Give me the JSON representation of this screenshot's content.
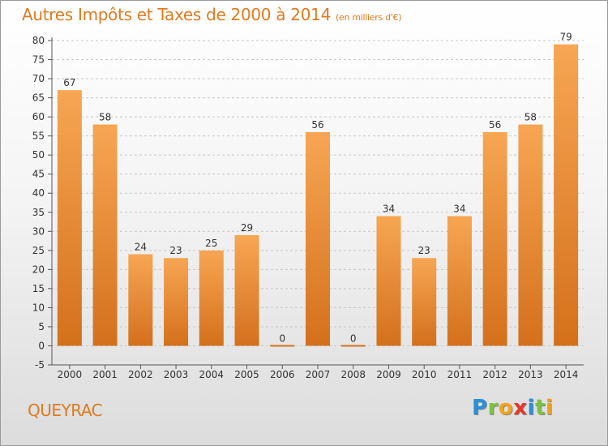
{
  "title": "Autres Impôts et Taxes de 2000 à 2014",
  "title_unit": "(en milliers d'€)",
  "place": "QUEYRAC",
  "logo": {
    "letters": [
      "P",
      "r",
      "o",
      "x",
      "i",
      "t",
      "i"
    ],
    "colors": [
      "#2a8fd8",
      "#7cc242",
      "#f2a31a",
      "#e8372a",
      "#2a8fd8",
      "#7cc242",
      "#f2a31a"
    ]
  },
  "colors": {
    "bar_light": "#f7a653",
    "bar_dark": "#d4701c",
    "accent": "#e07a1f",
    "grid": "#c8c8c8"
  },
  "chart_data": {
    "type": "bar",
    "categories": [
      "2000",
      "2001",
      "2002",
      "2003",
      "2004",
      "2005",
      "2006",
      "2007",
      "2008",
      "2009",
      "2010",
      "2011",
      "2012",
      "2013",
      "2014"
    ],
    "values": [
      67,
      58,
      24,
      23,
      25,
      29,
      0,
      56,
      0,
      34,
      23,
      34,
      56,
      58,
      79
    ],
    "data_labels": [
      "67",
      "58",
      "24",
      "23",
      "25",
      "29",
      "0",
      "56",
      "0",
      "34",
      "23",
      "34",
      "56",
      "58",
      "79"
    ],
    "y_ticks": [
      "-5",
      "0",
      "5",
      "10",
      "15",
      "20",
      "25",
      "30",
      "35",
      "40",
      "45",
      "50",
      "55",
      "60",
      "65",
      "70",
      "75",
      "80"
    ],
    "ylim": [
      -5,
      80
    ],
    "grid": true
  }
}
